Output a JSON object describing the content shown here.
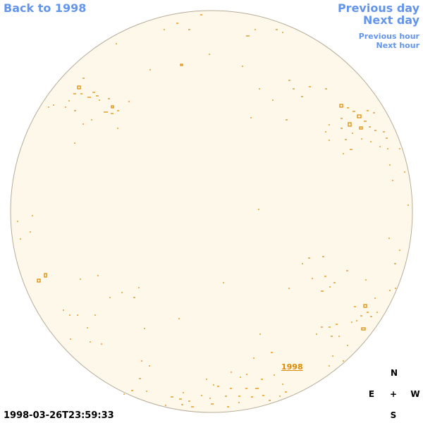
{
  "nav": {
    "back": "Back to 1998",
    "previous_day": "Previous day",
    "next_day": "Next day",
    "previous_hour": "Previous hour",
    "next_hour": "Next hour"
  },
  "disk_label": "1998",
  "timestamp": "1998-03-26T23:59:33",
  "compass": {
    "north": "N",
    "east": "E",
    "center": "+",
    "west": "W",
    "south": "S"
  }
}
